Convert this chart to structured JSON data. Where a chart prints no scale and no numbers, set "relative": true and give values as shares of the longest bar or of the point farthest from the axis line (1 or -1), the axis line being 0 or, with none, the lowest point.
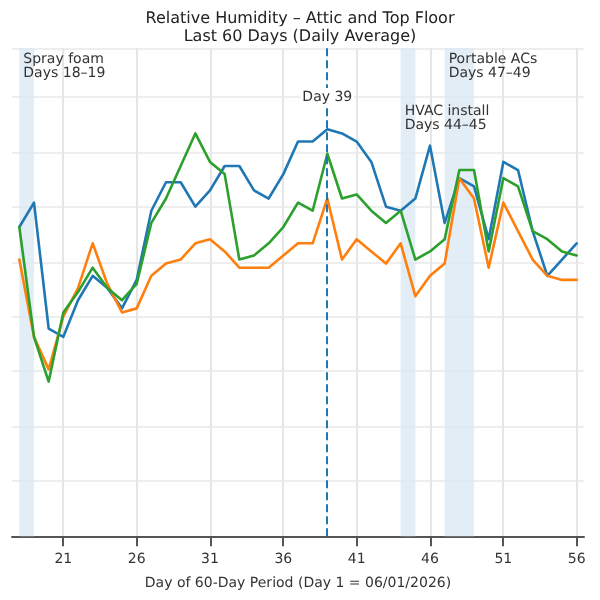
{
  "chart_data": {
    "type": "line",
    "title": "Relative Humidity – Attic and Top Floor",
    "subtitle": "Last 60 Days (Daily Average)",
    "xlabel": "Day of 60-Day Period (Day 1 = 06/01/2026)",
    "x": [
      18,
      19,
      20,
      21,
      22,
      23,
      24,
      25,
      26,
      27,
      28,
      29,
      30,
      31,
      32,
      33,
      34,
      35,
      36,
      37,
      38,
      39,
      40,
      41,
      42,
      43,
      44,
      45,
      46,
      47,
      48,
      49,
      50,
      51,
      52,
      53,
      54,
      55,
      56
    ],
    "xlim": [
      17.5,
      56.5
    ],
    "xticks": [
      21,
      26,
      31,
      36,
      41,
      46,
      51,
      56
    ],
    "relative": true,
    "series": [
      {
        "color": "#1f77b4",
        "values": [
          0.76,
          0.82,
          0.51,
          0.49,
          0.58,
          0.64,
          0.61,
          0.56,
          0.63,
          0.8,
          0.87,
          0.87,
          0.81,
          0.85,
          0.91,
          0.91,
          0.85,
          0.83,
          0.89,
          0.97,
          0.97,
          1.0,
          0.99,
          0.97,
          0.92,
          0.81,
          0.8,
          0.83,
          0.96,
          0.77,
          0.88,
          0.86,
          0.73,
          0.92,
          0.9,
          0.75,
          0.64,
          0.68,
          0.72
        ]
      },
      {
        "color": "#ff7f0e",
        "values": [
          0.68,
          0.49,
          0.41,
          0.54,
          0.61,
          0.72,
          0.62,
          0.55,
          0.56,
          0.64,
          0.67,
          0.68,
          0.72,
          0.73,
          0.7,
          0.66,
          0.66,
          0.66,
          0.69,
          0.72,
          0.72,
          0.83,
          0.68,
          0.73,
          0.7,
          0.67,
          0.72,
          0.59,
          0.64,
          0.67,
          0.88,
          0.83,
          0.66,
          0.82,
          0.75,
          0.68,
          0.64,
          0.63,
          0.63
        ]
      },
      {
        "color": "#2ca02c",
        "values": [
          0.76,
          0.49,
          0.38,
          0.55,
          0.6,
          0.66,
          0.61,
          0.58,
          0.62,
          0.77,
          0.83,
          0.91,
          0.99,
          0.92,
          0.89,
          0.68,
          0.69,
          0.72,
          0.76,
          0.82,
          0.8,
          0.94,
          0.83,
          0.84,
          0.8,
          0.77,
          0.8,
          0.68,
          0.7,
          0.73,
          0.9,
          0.9,
          0.7,
          0.88,
          0.86,
          0.75,
          0.73,
          0.7,
          0.69
        ]
      }
    ],
    "ref_lines": [
      {
        "axis": "x",
        "value": 39,
        "label": "Day 39",
        "color": "#1f77b4",
        "line_style": "dashed"
      }
    ],
    "bands": [
      {
        "axis": "x",
        "from": 18,
        "to": 19,
        "label": "Spray foam\nDays 18–19",
        "color": "#dbe8f3"
      },
      {
        "axis": "x",
        "from": 44,
        "to": 45,
        "label": "HVAC install\nDays 44–45",
        "color": "#dbe8f3"
      },
      {
        "axis": "x",
        "from": 47,
        "to": 49,
        "label": "Portable ACs\nDays 47–49",
        "color": "#dbe8f3"
      }
    ],
    "grid": true,
    "marker": "none",
    "line_style": "solid"
  }
}
